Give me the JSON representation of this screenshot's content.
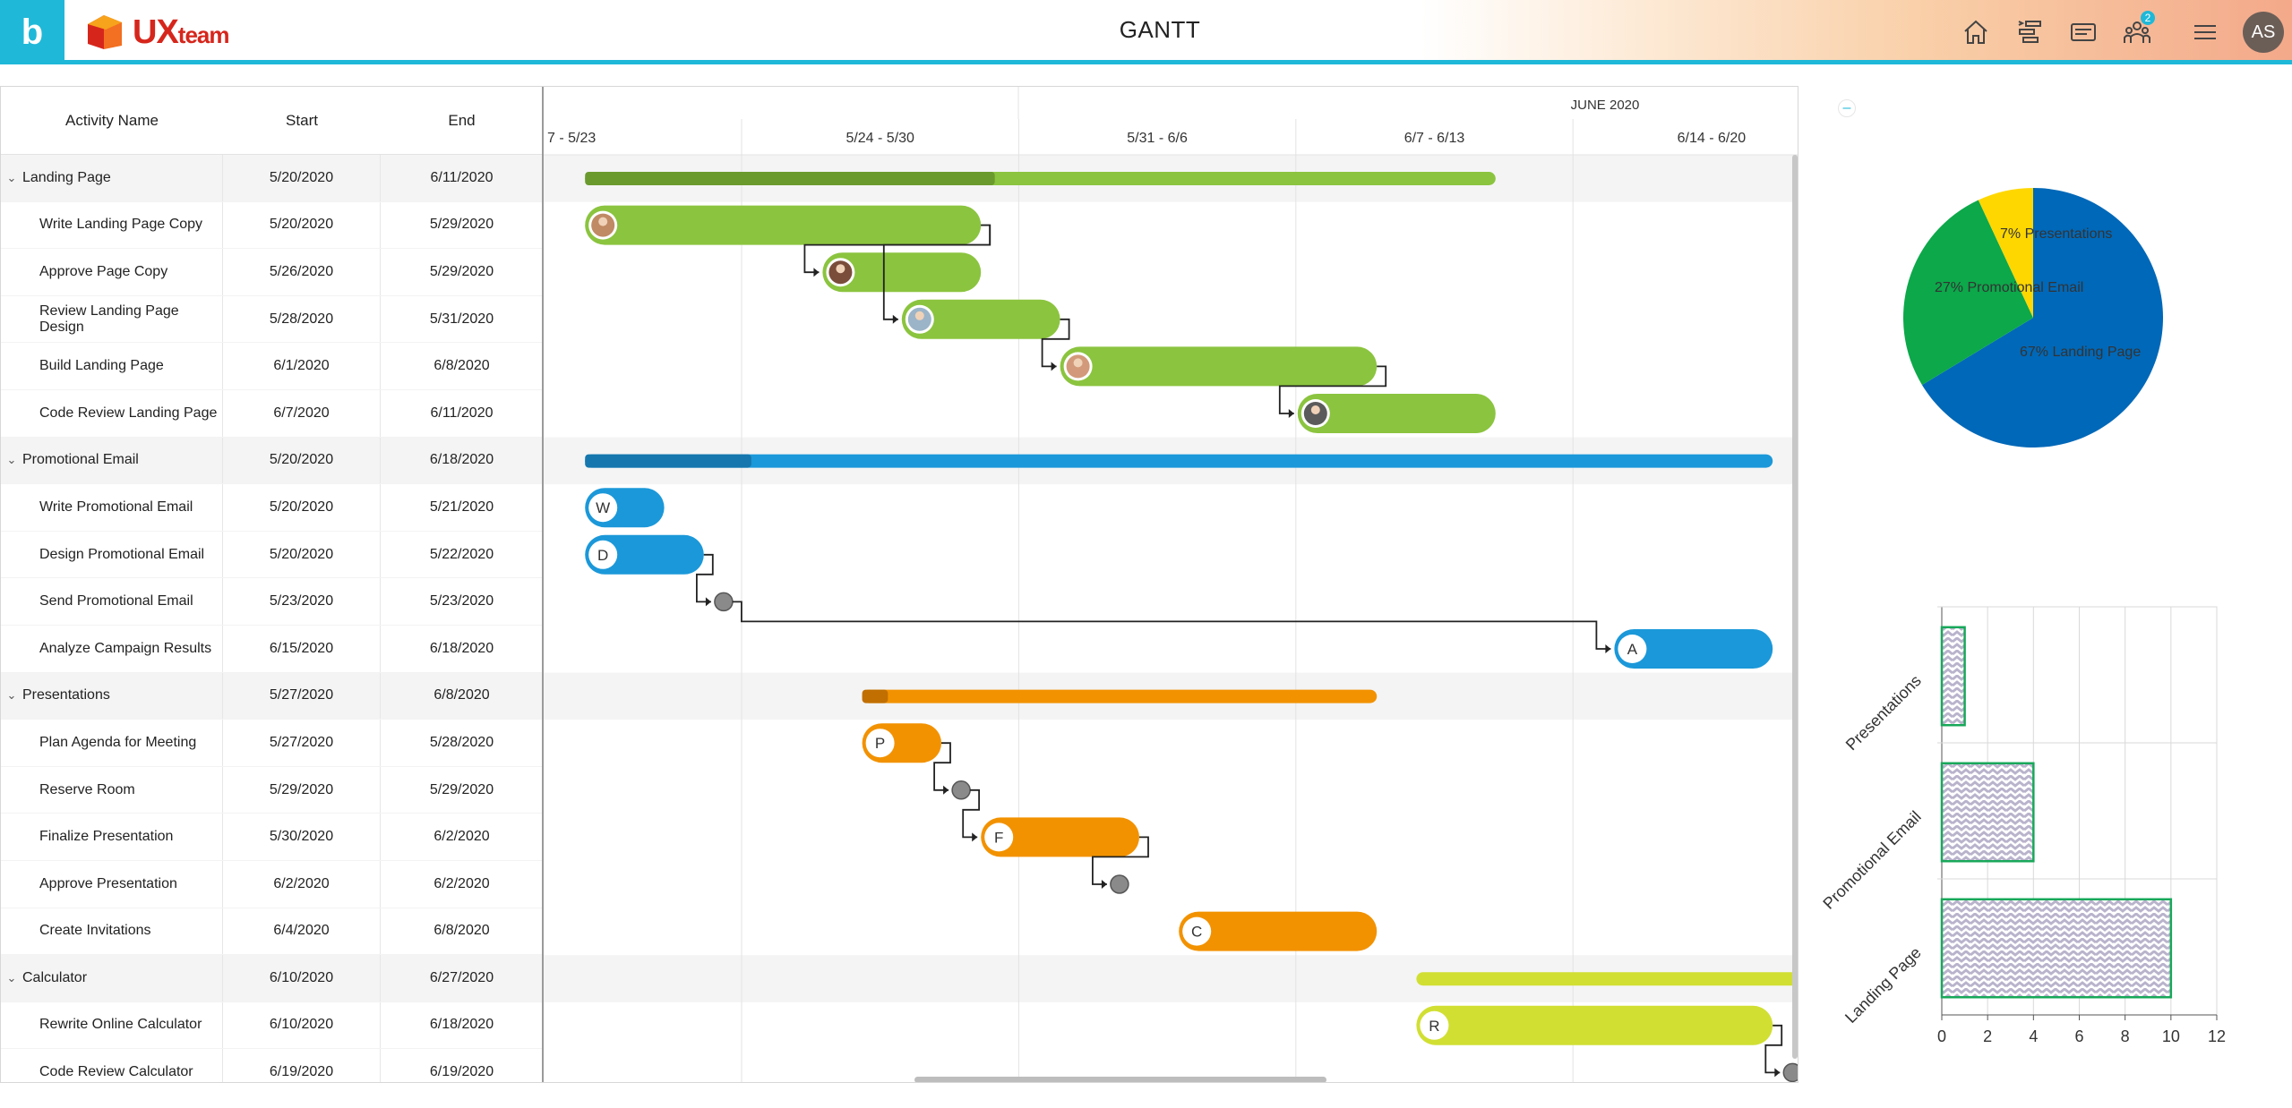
{
  "header": {
    "brand_glyph": "b",
    "logo_text": "UX",
    "logo_suffix": "team",
    "title": "GANTT",
    "icons": [
      "home-icon",
      "gantt-view-icon",
      "card-view-icon",
      "team-icon",
      "hamburger-menu-icon"
    ],
    "notification_count": "2",
    "avatar_initials": "AS"
  },
  "grid": {
    "columns": {
      "name": "Activity Name",
      "start": "Start",
      "end": "End"
    },
    "rows": [
      {
        "type": "group",
        "name": "Landing Page",
        "start": "5/20/2020",
        "end": "6/11/2020"
      },
      {
        "type": "task",
        "name": "Write Landing Page Copy",
        "start": "5/20/2020",
        "end": "5/29/2020"
      },
      {
        "type": "task",
        "name": "Approve Page Copy",
        "start": "5/26/2020",
        "end": "5/29/2020"
      },
      {
        "type": "task",
        "name": "Review Landing Page Design",
        "start": "5/28/2020",
        "end": "5/31/2020"
      },
      {
        "type": "task",
        "name": "Build Landing Page",
        "start": "6/1/2020",
        "end": "6/8/2020"
      },
      {
        "type": "task",
        "name": "Code Review Landing Page",
        "start": "6/7/2020",
        "end": "6/11/2020"
      },
      {
        "type": "group",
        "name": "Promotional Email",
        "start": "5/20/2020",
        "end": "6/18/2020"
      },
      {
        "type": "task",
        "name": "Write Promotional Email",
        "start": "5/20/2020",
        "end": "5/21/2020"
      },
      {
        "type": "task",
        "name": "Design Promotional Email",
        "start": "5/20/2020",
        "end": "5/22/2020"
      },
      {
        "type": "task",
        "name": "Send Promotional Email",
        "start": "5/23/2020",
        "end": "5/23/2020"
      },
      {
        "type": "task",
        "name": "Analyze Campaign Results",
        "start": "6/15/2020",
        "end": "6/18/2020"
      },
      {
        "type": "group",
        "name": "Presentations",
        "start": "5/27/2020",
        "end": "6/8/2020"
      },
      {
        "type": "task",
        "name": "Plan Agenda for Meeting",
        "start": "5/27/2020",
        "end": "5/28/2020"
      },
      {
        "type": "task",
        "name": "Reserve Room",
        "start": "5/29/2020",
        "end": "5/29/2020"
      },
      {
        "type": "task",
        "name": "Finalize Presentation",
        "start": "5/30/2020",
        "end": "6/2/2020"
      },
      {
        "type": "task",
        "name": "Approve Presentation",
        "start": "6/2/2020",
        "end": "6/2/2020"
      },
      {
        "type": "task",
        "name": "Create Invitations",
        "start": "6/4/2020",
        "end": "6/8/2020"
      },
      {
        "type": "group",
        "name": "Calculator",
        "start": "6/10/2020",
        "end": "6/27/2020"
      },
      {
        "type": "task",
        "name": "Rewrite Online Calculator",
        "start": "6/10/2020",
        "end": "6/18/2020"
      },
      {
        "type": "task",
        "name": "Code Review Calculator",
        "start": "6/19/2020",
        "end": "6/19/2020"
      }
    ]
  },
  "timeline": {
    "month_label": "JUNE 2020",
    "weeks": [
      "7 - 5/23",
      "5/24 - 5/30",
      "5/31 - 6/6",
      "6/7 - 6/13",
      "6/14 - 6/20"
    ],
    "first_visible_date": "5/19/2020",
    "colors": {
      "landing": "#8bc43f",
      "landing_dark": "#6a9a2e",
      "email": "#1b98d9",
      "email_dark": "#1577ad",
      "presentations": "#f29200",
      "presentations_dark": "#c06f00",
      "calculator": "#d1df33",
      "milestone": "#8a8a8a"
    },
    "bar_letters": {
      "Write Promotional Email": "W",
      "Design Promotional Email": "D",
      "Analyze Campaign Results": "A",
      "Plan Agenda for Meeting": "P",
      "Finalize Presentation": "F",
      "Create Invitations": "C",
      "Rewrite Online Calculator": "R"
    },
    "group_progress": {
      "Landing Page": 0.45,
      "Promotional Email": 0.14,
      "Presentations": 0.05
    }
  },
  "collapse_glyph": "–",
  "chart_data": [
    {
      "type": "pie",
      "title": "",
      "slices": [
        {
          "label": "67% Landing Page",
          "value": 67,
          "color": "#0068b8"
        },
        {
          "label": "27% Promotional Email",
          "value": 27,
          "color": "#0ca84a"
        },
        {
          "label": "7% Presentations",
          "value": 7,
          "color": "#ffd700"
        }
      ]
    },
    {
      "type": "bar",
      "orientation": "horizontal",
      "categories": [
        "Landing Page",
        "Promotional Email",
        "Presentations"
      ],
      "values": [
        10,
        4,
        1
      ],
      "xlim": [
        0,
        12
      ],
      "xticks": [
        0,
        2,
        4,
        6,
        8,
        10,
        12
      ],
      "grid": true,
      "bar_fill": "zigzag pattern",
      "bar_border": "#18a85a"
    }
  ]
}
